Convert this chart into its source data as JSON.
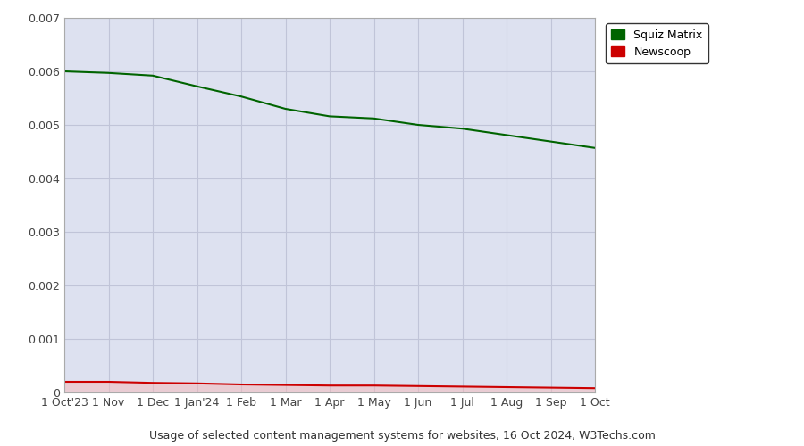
{
  "title": "Usage of selected content management systems for websites, 16 Oct 2024, W3Techs.com",
  "plot_bg_color": "#dde1f0",
  "outer_bg_color": "#ffffff",
  "squiz_color": "#006400",
  "newscoop_color": "#cc0000",
  "newscoop_fill_color": "#f5b8b8",
  "ylim": [
    0,
    0.007
  ],
  "yticks": [
    0,
    0.001,
    0.002,
    0.003,
    0.004,
    0.005,
    0.006,
    0.007
  ],
  "x_labels": [
    "1 Oct'23",
    "1 Nov",
    "1 Dec",
    "1 Jan'24",
    "1 Feb",
    "1 Mar",
    "1 Apr",
    "1 May",
    "1 Jun",
    "1 Jul",
    "1 Aug",
    "1 Sep",
    "1 Oct"
  ],
  "squiz_values": [
    0.006,
    0.00597,
    0.00592,
    0.00572,
    0.00553,
    0.0053,
    0.00516,
    0.00512,
    0.005,
    0.00493,
    0.00481,
    0.00469,
    0.00457
  ],
  "newscoop_values": [
    0.0002,
    0.0002,
    0.00018,
    0.00017,
    0.00015,
    0.00014,
    0.00013,
    0.00013,
    0.00012,
    0.00011,
    0.0001,
    9e-05,
    8e-05
  ],
  "legend_labels": [
    "Squiz Matrix",
    "Newscoop"
  ],
  "legend_squiz_color": "#006400",
  "legend_newscoop_color": "#cc0000",
  "grid_color": "#c0c4d8",
  "tick_color": "#444444",
  "title_fontsize": 9,
  "tick_fontsize": 9
}
